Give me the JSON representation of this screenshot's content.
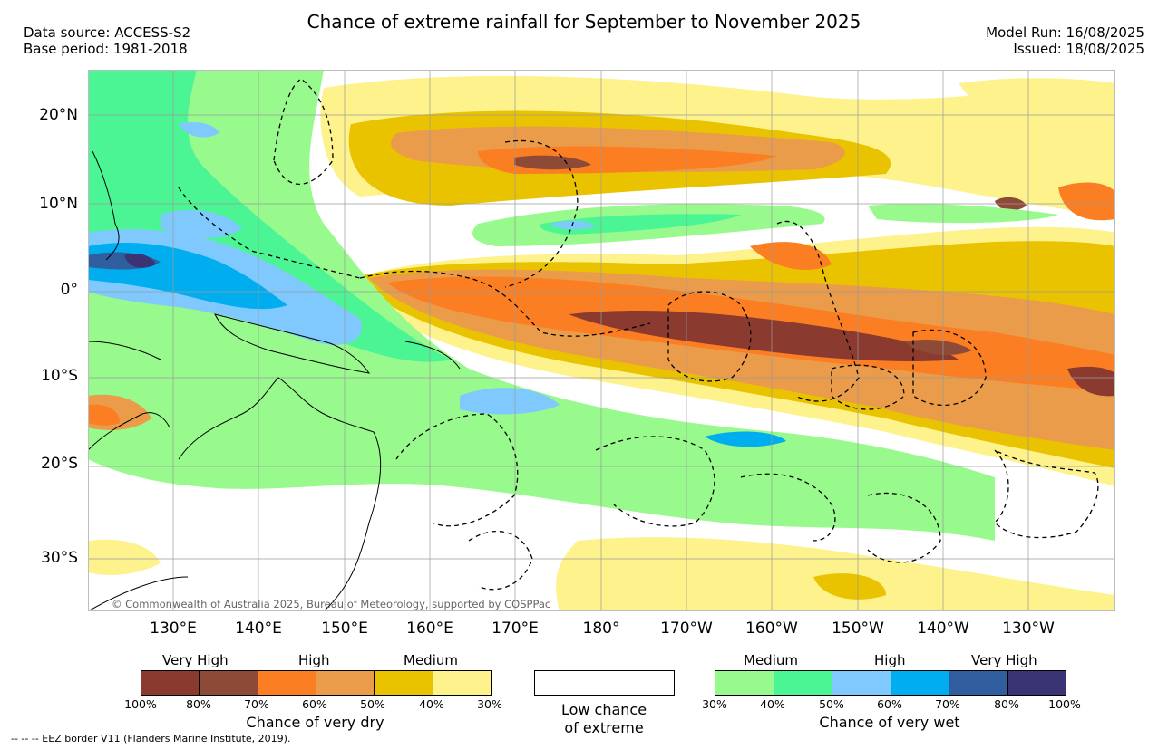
{
  "header": {
    "title": "Chance of extreme rainfall for September to November 2025",
    "data_source": "Data source: ACCESS-S2",
    "base_period": "Base period: 1981-2018",
    "model_run": "Model Run: 16/08/2025",
    "issued": "Issued: 18/08/2025"
  },
  "map": {
    "lat_labels": [
      "20°N",
      "10°N",
      "0°",
      "10°S",
      "20°S",
      "30°S"
    ],
    "lon_labels": [
      "130°E",
      "140°E",
      "150°E",
      "160°E",
      "170°E",
      "180°",
      "170°W",
      "160°W",
      "150°W",
      "140°W",
      "130°W"
    ],
    "copyright": "© Commonwealth of Australia 2025, Bureau of Meteorology, supported by COSPPac",
    "grid": true,
    "coastline_color": "#000000",
    "eez_line_style": "dashed"
  },
  "legend": {
    "dry": {
      "categories": [
        "Very High",
        "High",
        "Medium"
      ],
      "ticks": [
        "100%",
        "80%",
        "70%",
        "60%",
        "50%",
        "40%",
        "30%"
      ],
      "colors": [
        "#8b3a2f",
        "#8d4a36",
        "#fc7e23",
        "#eb9c4b",
        "#e9c300",
        "#fdf28c"
      ],
      "title": "Chance of very dry"
    },
    "low": {
      "line1": "Low chance",
      "line2": "of extreme",
      "color": "#ffffff"
    },
    "wet": {
      "categories": [
        "Medium",
        "High",
        "Very High"
      ],
      "ticks": [
        "30%",
        "40%",
        "50%",
        "60%",
        "70%",
        "80%",
        "100%"
      ],
      "colors": [
        "#98fa8c",
        "#4cf594",
        "#7fc9fe",
        "#00aeef",
        "#305e9e",
        "#3b3474"
      ],
      "title": "Chance of very wet"
    }
  },
  "footer": {
    "eez": "--  --  -- EEZ border V11 (Flanders Marine Institute, 2019)."
  }
}
